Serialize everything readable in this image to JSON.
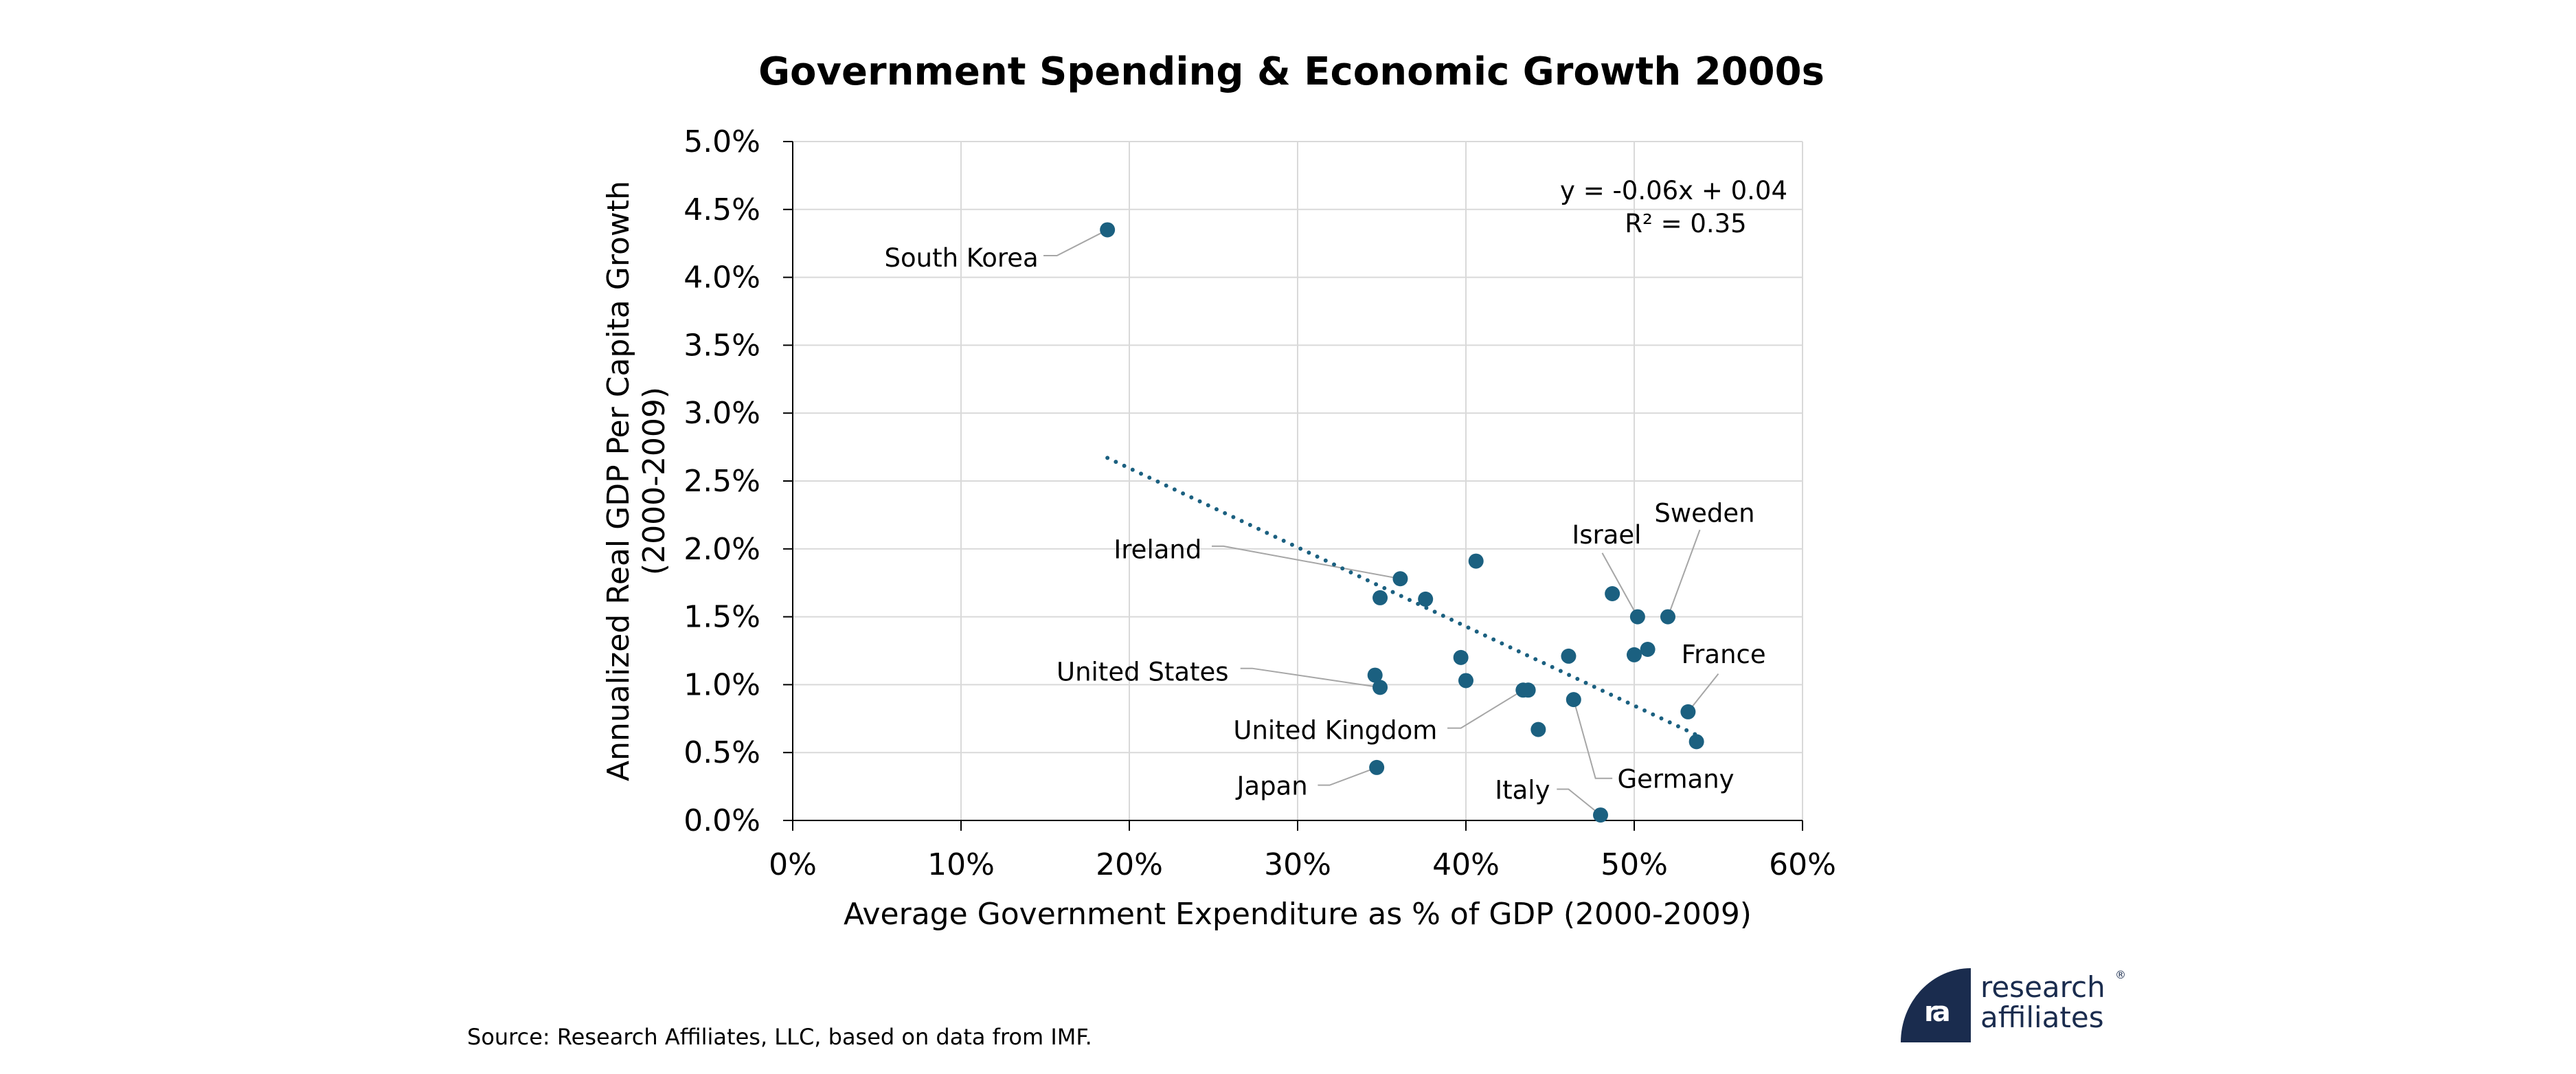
{
  "chart_data": {
    "type": "scatter",
    "title": "Government Spending & Economic Growth 2000s",
    "xlabel": "Average Government Expenditure as % of GDP (2000-2009)",
    "ylabel": [
      "Annualized Real GDP Per Capita Growth",
      "(2000-2009)"
    ],
    "xlim": [
      0,
      60
    ],
    "ylim": [
      0,
      5
    ],
    "x_ticks": [
      0,
      10,
      20,
      30,
      40,
      50,
      60
    ],
    "x_tick_labels": [
      "0%",
      "10%",
      "20%",
      "30%",
      "40%",
      "50%",
      "60%"
    ],
    "y_ticks": [
      0,
      0.5,
      1,
      1.5,
      2,
      2.5,
      3,
      3.5,
      4,
      4.5,
      5
    ],
    "y_tick_labels": [
      "0.0%",
      "0.5%",
      "1.0%",
      "1.5%",
      "2.0%",
      "2.5%",
      "3.0%",
      "3.5%",
      "4.0%",
      "4.5%",
      "5.0%"
    ],
    "grid": true,
    "marker_color": "#1b6080",
    "leader_color": "#a6a6a6",
    "points": [
      {
        "x": 18.7,
        "y": 4.35,
        "label": "South Korea"
      },
      {
        "x": 36.1,
        "y": 1.78,
        "label": "Ireland"
      },
      {
        "x": 34.9,
        "y": 1.64,
        "label": ""
      },
      {
        "x": 37.6,
        "y": 1.63,
        "label": ""
      },
      {
        "x": 40.6,
        "y": 1.91,
        "label": ""
      },
      {
        "x": 39.7,
        "y": 1.2,
        "label": ""
      },
      {
        "x": 40.0,
        "y": 1.03,
        "label": ""
      },
      {
        "x": 34.6,
        "y": 1.07,
        "label": ""
      },
      {
        "x": 34.9,
        "y": 0.98,
        "label": "United States"
      },
      {
        "x": 43.4,
        "y": 0.96,
        "label": "United Kingdom"
      },
      {
        "x": 43.7,
        "y": 0.96,
        "label": ""
      },
      {
        "x": 46.1,
        "y": 1.21,
        "label": ""
      },
      {
        "x": 46.4,
        "y": 0.89,
        "label": "Germany"
      },
      {
        "x": 44.3,
        "y": 0.67,
        "label": ""
      },
      {
        "x": 48.7,
        "y": 1.67,
        "label": ""
      },
      {
        "x": 50.2,
        "y": 1.5,
        "label": "Israel"
      },
      {
        "x": 52.0,
        "y": 1.5,
        "label": "Sweden"
      },
      {
        "x": 50.0,
        "y": 1.22,
        "label": ""
      },
      {
        "x": 50.8,
        "y": 1.26,
        "label": ""
      },
      {
        "x": 53.2,
        "y": 0.8,
        "label": "France"
      },
      {
        "x": 53.7,
        "y": 0.58,
        "label": ""
      },
      {
        "x": 34.7,
        "y": 0.39,
        "label": "Japan"
      },
      {
        "x": 48.0,
        "y": 0.04,
        "label": "Italy"
      }
    ],
    "trendline": {
      "style": "dotted",
      "x_start": 18.7,
      "y_start": 2.67,
      "x_end": 53.7,
      "y_end": 0.63,
      "equation": "y = -0.06x + 0.04",
      "r_squared": "R² = 0.35"
    },
    "annotations": [
      {
        "label": "South Korea",
        "text_x": 14.6,
        "text_y": 4.08,
        "anchor": "end",
        "leader": [
          [
            14.9,
            4.16
          ],
          [
            15.7,
            4.16
          ],
          [
            18.7,
            4.35
          ]
        ]
      },
      {
        "label": "Ireland",
        "text_x": 24.3,
        "text_y": 1.93,
        "anchor": "end",
        "leader": [
          [
            24.9,
            2.02
          ],
          [
            25.6,
            2.02
          ],
          [
            36.1,
            1.78
          ]
        ]
      },
      {
        "label": "United States",
        "text_x": 25.9,
        "text_y": 1.03,
        "anchor": "end",
        "leader": [
          [
            26.6,
            1.12
          ],
          [
            27.3,
            1.12
          ],
          [
            34.9,
            0.98
          ]
        ]
      },
      {
        "label": "United Kingdom",
        "text_x": 38.3,
        "text_y": 0.6,
        "anchor": "end",
        "leader": [
          [
            38.9,
            0.68
          ],
          [
            39.7,
            0.68
          ],
          [
            43.4,
            0.96
          ]
        ]
      },
      {
        "label": "Japan",
        "text_x": 30.6,
        "text_y": 0.19,
        "anchor": "end",
        "leader": [
          [
            31.2,
            0.26
          ],
          [
            31.9,
            0.26
          ],
          [
            34.7,
            0.39
          ]
        ]
      },
      {
        "label": "Italy",
        "text_x": 45.0,
        "text_y": 0.16,
        "anchor": "end",
        "leader": [
          [
            45.4,
            0.23
          ],
          [
            46.1,
            0.23
          ],
          [
            48.0,
            0.04
          ]
        ]
      },
      {
        "label": "Germany",
        "text_x": 49.0,
        "text_y": 0.24,
        "anchor": "start",
        "leader": [
          [
            48.7,
            0.31
          ],
          [
            47.7,
            0.31
          ],
          [
            46.4,
            0.89
          ]
        ]
      },
      {
        "label": "France",
        "text_x": 52.8,
        "text_y": 1.16,
        "anchor": "start",
        "leader": [
          [
            55.0,
            1.08
          ],
          [
            53.2,
            0.8
          ]
        ]
      },
      {
        "label": "Sweden",
        "text_x": 51.2,
        "text_y": 2.2,
        "anchor": "start",
        "leader": [
          [
            53.9,
            2.14
          ],
          [
            52.0,
            1.5
          ]
        ]
      },
      {
        "label": "Israel",
        "text_x": 46.3,
        "text_y": 2.04,
        "anchor": "start",
        "leader": [
          [
            48.1,
            1.97
          ],
          [
            50.2,
            1.5
          ]
        ]
      }
    ],
    "equation_text_position": "top-right"
  },
  "source": "Source: Research Affiliates, LLC, based on data from IMF.",
  "logo": {
    "glyph": "ra",
    "line1": "research",
    "line2": "affiliates",
    "registered": "®",
    "color": "#1a2c4e"
  }
}
